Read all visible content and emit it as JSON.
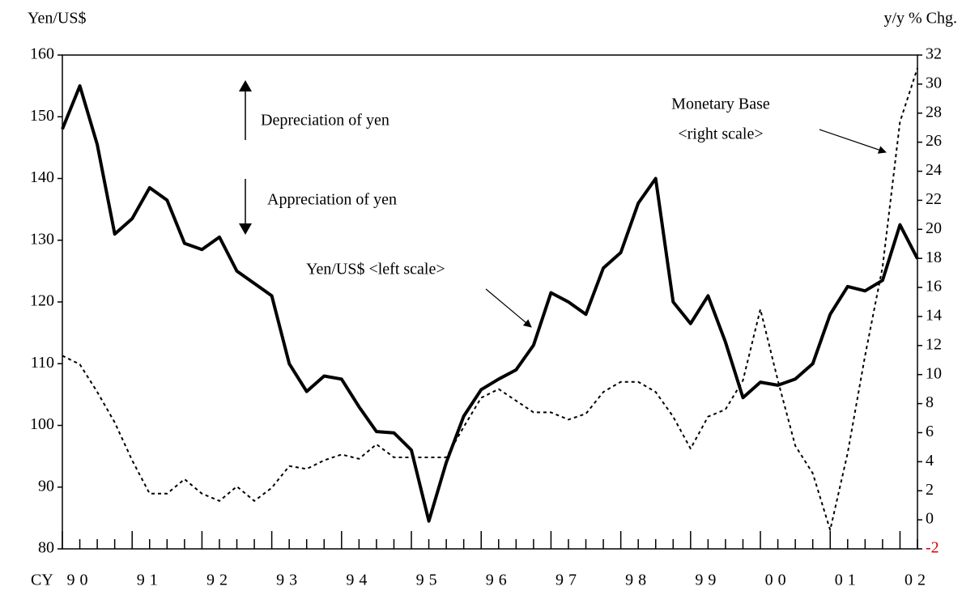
{
  "chart_data": {
    "type": "line",
    "ylabel": "Yen/US$",
    "y2label": "y/y % Chg.",
    "xprefix": "CY",
    "categories": [
      null,
      "90",
      null,
      null,
      null,
      "91",
      null,
      null,
      null,
      "92",
      null,
      null,
      null,
      "93",
      null,
      null,
      null,
      "94",
      null,
      null,
      null,
      "95",
      null,
      null,
      null,
      "96",
      null,
      null,
      null,
      "97",
      null,
      null,
      null,
      "98",
      null,
      null,
      null,
      "99",
      null,
      null,
      null,
      "00",
      null,
      null,
      null,
      "01",
      null,
      null,
      null,
      "02"
    ],
    "series": [
      {
        "color": "#000000",
        "style": "solid",
        "values": [
          148,
          155,
          145.5,
          131,
          133.5,
          138.5,
          136.5,
          129.5,
          128.5,
          130.5,
          125,
          123,
          121,
          110,
          105.5,
          108,
          107.5,
          103,
          99,
          98.8,
          96,
          84.5,
          94,
          101.5,
          105.8,
          107.5,
          109,
          113,
          121.5,
          120,
          118,
          125.5,
          128,
          136,
          140,
          120,
          116.5,
          121,
          113.5,
          104.5,
          107,
          106.5,
          107.5,
          110,
          118,
          122.5,
          121.8,
          123.5,
          132.5,
          127
        ]
      },
      {
        "color": "#000000",
        "style": "dashed",
        "axis": "y2",
        "values": [
          11.3,
          10.7,
          8.8,
          6.7,
          4.1,
          1.8,
          1.8,
          2.8,
          1.8,
          1.3,
          2.3,
          1.3,
          2.2,
          3.7,
          3.5,
          4.1,
          4.5,
          4.2,
          5.2,
          4.3,
          4.3,
          4.3,
          4.3,
          6.4,
          8.4,
          9.0,
          8.2,
          7.4,
          7.4,
          6.9,
          7.3,
          8.8,
          9.5,
          9.5,
          8.8,
          7.1,
          4.9,
          7.1,
          7.6,
          9.6,
          14.5,
          9.6,
          5.1,
          3.2,
          -0.7,
          4.6,
          11.3,
          17.4,
          27.4,
          31.1
        ]
      }
    ],
    "ylim": [
      80,
      160
    ],
    "yticks": [
      80,
      90,
      100,
      110,
      120,
      130,
      140,
      150,
      160
    ],
    "y2lim": [
      -2,
      32
    ],
    "y2ticks": [
      -2,
      0,
      2,
      4,
      6,
      8,
      10,
      12,
      14,
      16,
      18,
      20,
      22,
      24,
      26,
      28,
      30,
      32
    ],
    "annotations": [
      "Depreciation of yen",
      "Appreciation of yen",
      "Yen/US$ <left scale>",
      "Monetary Base",
      "<right scale>"
    ]
  }
}
